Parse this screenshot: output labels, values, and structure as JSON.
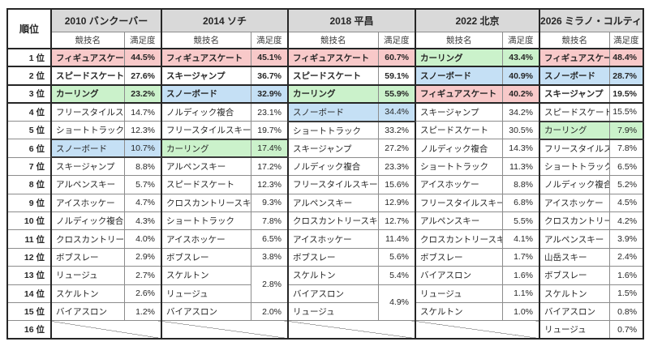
{
  "table": {
    "rank_header": "順位",
    "sub_headers": {
      "sport": "競技名",
      "satisfaction": "満足度"
    },
    "rank_labels": [
      "1 位",
      "2 位",
      "3 位",
      "4 位",
      "5 位",
      "6 位",
      "7 位",
      "8 位",
      "9 位",
      "10 位",
      "11 位",
      "12 位",
      "13 位",
      "14 位",
      "15 位",
      "16 位"
    ],
    "colors": {
      "pink": "#F8C9C9",
      "green": "#CBF2CB",
      "blue": "#C5E0F5",
      "header_bg": "#D9D9D9",
      "border_dark": "#262626",
      "border_light": "#8C8C8C"
    },
    "columns": [
      {
        "title": "2010 バンクーバー",
        "rows": [
          {
            "sport": "フィギュアスケート",
            "value": "44.5%",
            "hl": "pink"
          },
          {
            "sport": "スピードスケート",
            "value": "27.6%"
          },
          {
            "sport": "カーリング",
            "value": "23.2%",
            "hl": "green"
          },
          {
            "sport": "フリースタイルスキー",
            "value": "14.7%"
          },
          {
            "sport": "ショートトラック",
            "value": "12.3%"
          },
          {
            "sport": "スノーボード",
            "value": "10.7%",
            "hl": "blue"
          },
          {
            "sport": "スキージャンプ",
            "value": "8.8%"
          },
          {
            "sport": "アルペンスキー",
            "value": "5.7%"
          },
          {
            "sport": "アイスホッケー",
            "value": "4.7%"
          },
          {
            "sport": "ノルディック複合",
            "value": "4.3%"
          },
          {
            "sport": "クロスカントリースキー",
            "value": "4.0%"
          },
          {
            "sport": "ボブスレー",
            "value": "2.9%"
          },
          {
            "sport": "リュージュ",
            "value": "2.7%"
          },
          {
            "sport": "スケルトン",
            "value": "2.6%"
          },
          {
            "sport": "バイアスロン",
            "value": "1.2%"
          },
          {
            "empty": true
          }
        ]
      },
      {
        "title": "2014 ソチ",
        "rows": [
          {
            "sport": "フィギュアスケート",
            "value": "45.1%",
            "hl": "pink"
          },
          {
            "sport": "スキージャンプ",
            "value": "36.7%"
          },
          {
            "sport": "スノーボード",
            "value": "32.9%",
            "hl": "blue"
          },
          {
            "sport": "ノルディック複合",
            "value": "23.1%"
          },
          {
            "sport": "フリースタイルスキー",
            "value": "19.7%"
          },
          {
            "sport": "カーリング",
            "value": "17.4%",
            "hl": "green"
          },
          {
            "sport": "アルペンスキー",
            "value": "17.2%"
          },
          {
            "sport": "スピードスケート",
            "value": "12.3%"
          },
          {
            "sport": "クロスカントリースキー",
            "value": "9.3%"
          },
          {
            "sport": "ショートトラック",
            "value": "7.8%"
          },
          {
            "sport": "アイスホッケー",
            "value": "6.5%"
          },
          {
            "sport": "ボブスレー",
            "value": "3.8%"
          },
          {
            "sport": "スケルトン",
            "value": "2.8%",
            "value_rowspan": 2
          },
          {
            "sport": "リュージュ",
            "merged_above": true
          },
          {
            "sport": "バイアスロン",
            "value": "2.0%"
          },
          {
            "empty": true
          }
        ]
      },
      {
        "title": "2018 平昌",
        "rows": [
          {
            "sport": "フィギュアスケート",
            "value": "60.7%",
            "hl": "pink"
          },
          {
            "sport": "スピードスケート",
            "value": "59.1%"
          },
          {
            "sport": "カーリング",
            "value": "55.9%",
            "hl": "green"
          },
          {
            "sport": "スノーボード",
            "value": "34.4%",
            "hl": "blue"
          },
          {
            "sport": "ショートトラック",
            "value": "33.2%"
          },
          {
            "sport": "スキージャンプ",
            "value": "27.2%"
          },
          {
            "sport": "ノルディック複合",
            "value": "23.3%"
          },
          {
            "sport": "フリースタイルスキー",
            "value": "15.6%"
          },
          {
            "sport": "アルペンスキー",
            "value": "12.9%"
          },
          {
            "sport": "クロスカントリースキー",
            "value": "12.7%"
          },
          {
            "sport": "アイスホッケー",
            "value": "11.4%"
          },
          {
            "sport": "ボブスレー",
            "value": "5.6%"
          },
          {
            "sport": "スケルトン",
            "value": "5.4%"
          },
          {
            "sport": "バイアスロン",
            "value": "4.9%",
            "value_rowspan": 2
          },
          {
            "sport": "リュージュ",
            "merged_above": true
          },
          {
            "empty": true
          }
        ]
      },
      {
        "title": "2022 北京",
        "rows": [
          {
            "sport": "カーリング",
            "value": "43.4%",
            "hl": "green"
          },
          {
            "sport": "スノーボード",
            "value": "40.9%",
            "hl": "blue"
          },
          {
            "sport": "フィギュアスケート",
            "value": "40.2%",
            "hl": "pink"
          },
          {
            "sport": "スキージャンプ",
            "value": "34.2%"
          },
          {
            "sport": "スピードスケート",
            "value": "30.5%"
          },
          {
            "sport": "ノルディック複合",
            "value": "14.3%"
          },
          {
            "sport": "ショートトラック",
            "value": "11.3%"
          },
          {
            "sport": "アイスホッケー",
            "value": "8.8%"
          },
          {
            "sport": "フリースタイルスキー",
            "value": "6.8%"
          },
          {
            "sport": "アルペンスキー",
            "value": "5.5%"
          },
          {
            "sport": "クロスカントリースキー",
            "value": "4.1%"
          },
          {
            "sport": "ボブスレー",
            "value": "1.7%"
          },
          {
            "sport": "バイアスロン",
            "value": "1.6%"
          },
          {
            "sport": "リュージュ",
            "value": "1.1%"
          },
          {
            "sport": "スケルトン",
            "value": "1.0%"
          },
          {
            "empty": true
          }
        ]
      },
      {
        "title": "2026 ミラノ・コルティナ",
        "rows": [
          {
            "sport": "フィギュアスケート",
            "value": "48.4%",
            "hl": "pink"
          },
          {
            "sport": "スノーボード",
            "value": "28.7%",
            "hl": "blue"
          },
          {
            "sport": "スキージャンプ",
            "value": "19.5%"
          },
          {
            "sport": "スピードスケート",
            "value": "15.5%"
          },
          {
            "sport": "カーリング",
            "value": "7.9%",
            "hl": "green"
          },
          {
            "sport": "フリースタイルスキー",
            "value": "7.8%"
          },
          {
            "sport": "ショートトラック",
            "value": "6.5%"
          },
          {
            "sport": "ノルディック複合",
            "value": "5.2%"
          },
          {
            "sport": "アイスホッケー",
            "value": "4.5%"
          },
          {
            "sport": "クロスカントリースキー",
            "value": "4.2%"
          },
          {
            "sport": "アルペンスキー",
            "value": "3.9%"
          },
          {
            "sport": "山岳スキー",
            "value": "2.4%"
          },
          {
            "sport": "ボブスレー",
            "value": "1.6%"
          },
          {
            "sport": "スケルトン",
            "value": "1.5%"
          },
          {
            "sport": "バイアスロン",
            "value": "0.8%"
          },
          {
            "sport": "リュージュ",
            "value": "0.7%"
          }
        ]
      }
    ]
  }
}
